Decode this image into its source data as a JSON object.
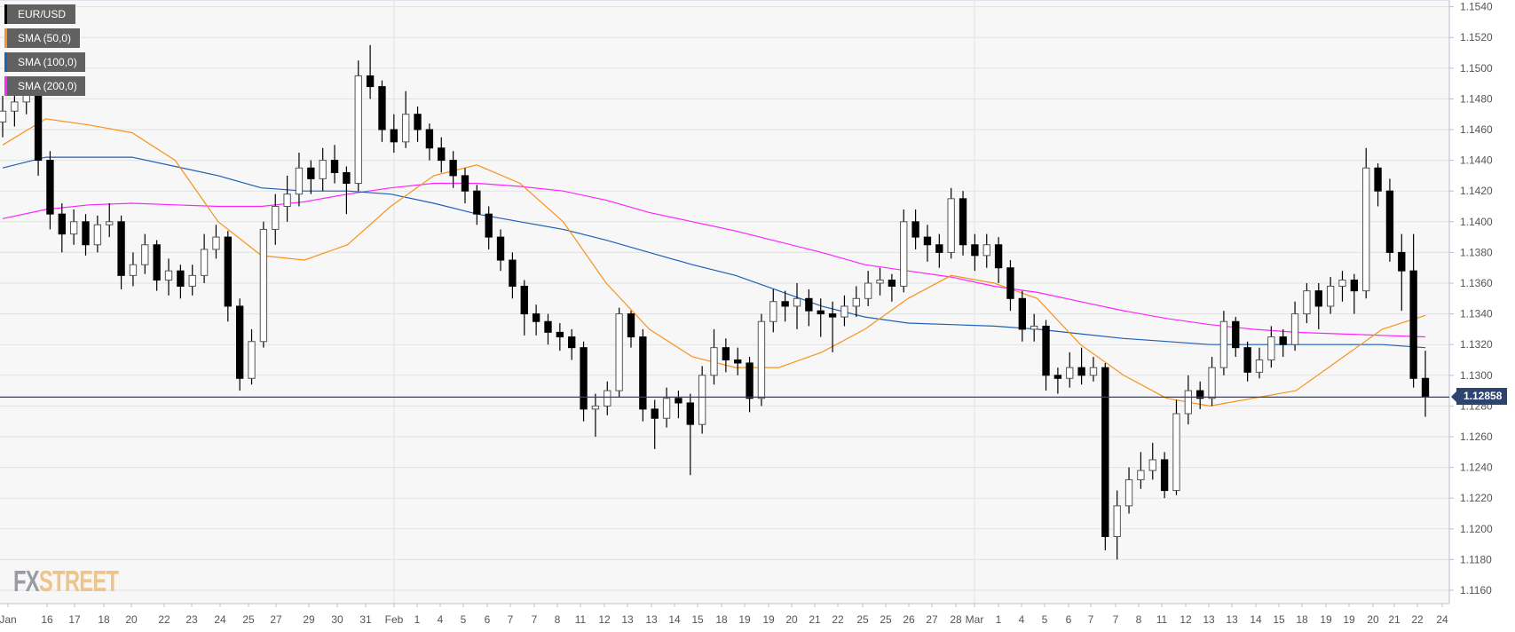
{
  "chart_data": {
    "type": "candlestick",
    "symbol": "EUR/USD",
    "last_price": "1.12858",
    "ylim": [
      1.1151,
      1.1542
    ],
    "y_ticks": [
      "1.1540",
      "1.1520",
      "1.1500",
      "1.1480",
      "1.1460",
      "1.1440",
      "1.1420",
      "1.1400",
      "1.1380",
      "1.1360",
      "1.1340",
      "1.1320",
      "1.1300",
      "1.1280",
      "1.1260",
      "1.1240",
      "1.1220",
      "1.1200",
      "1.1180",
      "1.1160"
    ],
    "x_ticks": [
      "Jan",
      "16",
      "17",
      "18",
      "20",
      "22",
      "23",
      "24",
      "25",
      "27",
      "29",
      "30",
      "31",
      "Feb",
      "1",
      "4",
      "5",
      "6",
      "7",
      "7",
      "8",
      "11",
      "12",
      "13",
      "13",
      "14",
      "15",
      "18",
      "19",
      "19",
      "20",
      "21",
      "22",
      "25",
      "25",
      "26",
      "27",
      "28",
      "Mar",
      "1",
      "4",
      "5",
      "6",
      "7",
      "7",
      "8",
      "11",
      "12",
      "13",
      "13",
      "14",
      "15",
      "18",
      "19",
      "19",
      "20",
      "21",
      "22",
      "24"
    ],
    "grid": true,
    "colors": {
      "up": "#ffffff",
      "down": "#000000",
      "sma50": "#f7931e",
      "sma100": "#1f5fb4",
      "sma200": "#ff22ff",
      "price_line": "#2c4470"
    },
    "legend": [
      {
        "label": "EUR/USD",
        "color": "#000000"
      },
      {
        "label": "SMA (50,0)",
        "color": "#f7931e"
      },
      {
        "label": "SMA (100,0)",
        "color": "#1f5fb4"
      },
      {
        "label": "SMA (200,0)",
        "color": "#ff22ff"
      }
    ],
    "ohlc": [
      [
        1.1465,
        1.1482,
        1.1455,
        1.1472
      ],
      [
        1.1472,
        1.1486,
        1.1462,
        1.1478
      ],
      [
        1.1478,
        1.1494,
        1.147,
        1.1485
      ],
      [
        1.1485,
        1.1488,
        1.143,
        1.144
      ],
      [
        1.144,
        1.1446,
        1.1395,
        1.1405
      ],
      [
        1.1405,
        1.1412,
        1.138,
        1.1392
      ],
      [
        1.1392,
        1.1408,
        1.1385,
        1.14
      ],
      [
        1.14,
        1.1405,
        1.1378,
        1.1385
      ],
      [
        1.1385,
        1.1404,
        1.138,
        1.1398
      ],
      [
        1.1398,
        1.1412,
        1.139,
        1.14
      ],
      [
        1.14,
        1.1404,
        1.1356,
        1.1365
      ],
      [
        1.1365,
        1.138,
        1.1358,
        1.1372
      ],
      [
        1.1372,
        1.1392,
        1.1366,
        1.1385
      ],
      [
        1.1385,
        1.1388,
        1.1355,
        1.1362
      ],
      [
        1.1362,
        1.1376,
        1.1352,
        1.1368
      ],
      [
        1.1368,
        1.1372,
        1.135,
        1.1358
      ],
      [
        1.1358,
        1.1372,
        1.1352,
        1.1365
      ],
      [
        1.1365,
        1.1392,
        1.136,
        1.1382
      ],
      [
        1.1382,
        1.1398,
        1.1376,
        1.139
      ],
      [
        1.139,
        1.1394,
        1.1335,
        1.1345
      ],
      [
        1.1345,
        1.135,
        1.129,
        1.1298
      ],
      [
        1.1298,
        1.133,
        1.1294,
        1.1322
      ],
      [
        1.1322,
        1.14,
        1.1318,
        1.1395
      ],
      [
        1.1395,
        1.1418,
        1.1385,
        1.141
      ],
      [
        1.141,
        1.143,
        1.14,
        1.1418
      ],
      [
        1.1418,
        1.1445,
        1.141,
        1.1435
      ],
      [
        1.1435,
        1.144,
        1.1418,
        1.1428
      ],
      [
        1.1428,
        1.1448,
        1.142,
        1.144
      ],
      [
        1.144,
        1.145,
        1.1425,
        1.1432
      ],
      [
        1.1432,
        1.1436,
        1.1405,
        1.1425
      ],
      [
        1.1425,
        1.1505,
        1.142,
        1.1495
      ],
      [
        1.1495,
        1.1515,
        1.148,
        1.1488
      ],
      [
        1.1488,
        1.1492,
        1.1452,
        1.146
      ],
      [
        1.146,
        1.147,
        1.1445,
        1.1452
      ],
      [
        1.1452,
        1.1485,
        1.1448,
        1.147
      ],
      [
        1.147,
        1.1475,
        1.1452,
        1.146
      ],
      [
        1.146,
        1.1464,
        1.144,
        1.1448
      ],
      [
        1.1448,
        1.1455,
        1.1432,
        1.144
      ],
      [
        1.144,
        1.1446,
        1.1422,
        1.143
      ],
      [
        1.143,
        1.1435,
        1.1412,
        1.142
      ],
      [
        1.142,
        1.1424,
        1.1398,
        1.1405
      ],
      [
        1.1405,
        1.141,
        1.1382,
        1.139
      ],
      [
        1.139,
        1.1395,
        1.1368,
        1.1375
      ],
      [
        1.1375,
        1.138,
        1.135,
        1.1358
      ],
      [
        1.1358,
        1.1362,
        1.1326,
        1.134
      ],
      [
        1.134,
        1.1346,
        1.1326,
        1.1335
      ],
      [
        1.1335,
        1.134,
        1.132,
        1.1328
      ],
      [
        1.1328,
        1.1334,
        1.1316,
        1.1325
      ],
      [
        1.1325,
        1.133,
        1.131,
        1.1318
      ],
      [
        1.1318,
        1.1322,
        1.127,
        1.1278
      ],
      [
        1.1278,
        1.1288,
        1.126,
        1.128
      ],
      [
        1.128,
        1.1296,
        1.1274,
        1.129
      ],
      [
        1.129,
        1.1344,
        1.1286,
        1.134
      ],
      [
        1.134,
        1.1342,
        1.1318,
        1.1325
      ],
      [
        1.1325,
        1.133,
        1.127,
        1.1278
      ],
      [
        1.1278,
        1.1284,
        1.1252,
        1.1272
      ],
      [
        1.1272,
        1.1292,
        1.1266,
        1.1285
      ],
      [
        1.1285,
        1.129,
        1.1272,
        1.1282
      ],
      [
        1.1282,
        1.1288,
        1.1235,
        1.1268
      ],
      [
        1.1268,
        1.1306,
        1.1262,
        1.13
      ],
      [
        1.13,
        1.133,
        1.1294,
        1.1318
      ],
      [
        1.1318,
        1.1324,
        1.1302,
        1.131
      ],
      [
        1.131,
        1.1318,
        1.13,
        1.1308
      ],
      [
        1.1308,
        1.1312,
        1.1276,
        1.1285
      ],
      [
        1.1285,
        1.134,
        1.128,
        1.1335
      ],
      [
        1.1335,
        1.1356,
        1.1328,
        1.1348
      ],
      [
        1.1348,
        1.1355,
        1.1335,
        1.1345
      ],
      [
        1.1345,
        1.136,
        1.133,
        1.135
      ],
      [
        1.135,
        1.1356,
        1.1332,
        1.1342
      ],
      [
        1.1342,
        1.135,
        1.1325,
        1.134
      ],
      [
        1.134,
        1.1348,
        1.1315,
        1.1338
      ],
      [
        1.1338,
        1.1352,
        1.1332,
        1.1345
      ],
      [
        1.1345,
        1.1358,
        1.1338,
        1.135
      ],
      [
        1.135,
        1.1368,
        1.1345,
        1.136
      ],
      [
        1.136,
        1.137,
        1.1352,
        1.1362
      ],
      [
        1.1362,
        1.1366,
        1.1348,
        1.1358
      ],
      [
        1.1358,
        1.1408,
        1.1354,
        1.14
      ],
      [
        1.14,
        1.1408,
        1.1382,
        1.139
      ],
      [
        1.139,
        1.1398,
        1.1374,
        1.1385
      ],
      [
        1.1385,
        1.1392,
        1.137,
        1.138
      ],
      [
        1.138,
        1.1422,
        1.1376,
        1.1415
      ],
      [
        1.1415,
        1.142,
        1.1378,
        1.1385
      ],
      [
        1.1385,
        1.1392,
        1.1368,
        1.1378
      ],
      [
        1.1378,
        1.1392,
        1.137,
        1.1385
      ],
      [
        1.1385,
        1.139,
        1.136,
        1.137
      ],
      [
        1.137,
        1.1375,
        1.1342,
        1.135
      ],
      [
        1.135,
        1.1355,
        1.1322,
        1.133
      ],
      [
        1.133,
        1.134,
        1.1322,
        1.1332
      ],
      [
        1.1332,
        1.1336,
        1.129,
        1.13
      ],
      [
        1.13,
        1.1305,
        1.1288,
        1.1298
      ],
      [
        1.1298,
        1.1315,
        1.1292,
        1.1305
      ],
      [
        1.1305,
        1.1318,
        1.1294,
        1.13
      ],
      [
        1.13,
        1.1312,
        1.1296,
        1.1305
      ],
      [
        1.1305,
        1.1308,
        1.1186,
        1.1195
      ],
      [
        1.1195,
        1.1225,
        1.118,
        1.1215
      ],
      [
        1.1215,
        1.124,
        1.121,
        1.1232
      ],
      [
        1.1232,
        1.125,
        1.1226,
        1.1238
      ],
      [
        1.1238,
        1.1256,
        1.1232,
        1.1245
      ],
      [
        1.1245,
        1.125,
        1.122,
        1.1225
      ],
      [
        1.1225,
        1.1284,
        1.1222,
        1.1275
      ],
      [
        1.1275,
        1.13,
        1.1268,
        1.129
      ],
      [
        1.129,
        1.1296,
        1.1278,
        1.1285
      ],
      [
        1.1285,
        1.1312,
        1.128,
        1.1305
      ],
      [
        1.1305,
        1.1342,
        1.13,
        1.1335
      ],
      [
        1.1335,
        1.1338,
        1.1312,
        1.1318
      ],
      [
        1.1318,
        1.1322,
        1.1296,
        1.1302
      ],
      [
        1.1302,
        1.1318,
        1.1298,
        1.131
      ],
      [
        1.131,
        1.1332,
        1.1305,
        1.1325
      ],
      [
        1.1325,
        1.133,
        1.1312,
        1.132
      ],
      [
        1.132,
        1.1348,
        1.1316,
        1.134
      ],
      [
        1.134,
        1.136,
        1.1334,
        1.1355
      ],
      [
        1.1355,
        1.136,
        1.133,
        1.1345
      ],
      [
        1.1345,
        1.1364,
        1.134,
        1.1358
      ],
      [
        1.1358,
        1.1368,
        1.1348,
        1.1362
      ],
      [
        1.1362,
        1.1366,
        1.134,
        1.1355
      ],
      [
        1.1355,
        1.1448,
        1.135,
        1.1435
      ],
      [
        1.1435,
        1.1438,
        1.141,
        1.142
      ],
      [
        1.142,
        1.1428,
        1.1374,
        1.138
      ],
      [
        1.138,
        1.1392,
        1.1342,
        1.1368
      ],
      [
        1.1368,
        1.1392,
        1.1292,
        1.1298
      ],
      [
        1.1298,
        1.1316,
        1.1273,
        1.12858
      ]
    ],
    "sma50": [
      1.145,
      1.1467,
      1.1463,
      1.1458,
      1.144,
      1.14,
      1.1378,
      1.1375,
      1.1385,
      1.141,
      1.143,
      1.1437,
      1.1425,
      1.14,
      1.136,
      1.133,
      1.1312,
      1.1305,
      1.1305,
      1.1315,
      1.133,
      1.135,
      1.1365,
      1.136,
      1.135,
      1.132,
      1.13,
      1.1285,
      1.128,
      1.1285,
      1.129,
      1.131,
      1.133,
      1.1339
    ],
    "sma100": [
      1.1435,
      1.1442,
      1.1442,
      1.1442,
      1.1436,
      1.143,
      1.1422,
      1.142,
      1.142,
      1.1418,
      1.1412,
      1.1405,
      1.14,
      1.1395,
      1.1388,
      1.138,
      1.1372,
      1.1365,
      1.1355,
      1.1345,
      1.1338,
      1.1334,
      1.1333,
      1.1332,
      1.133,
      1.1327,
      1.1324,
      1.1322,
      1.132,
      1.132,
      1.132,
      1.132,
      1.132,
      1.1318
    ],
    "sma200": [
      1.1402,
      1.1408,
      1.1411,
      1.1412,
      1.1411,
      1.141,
      1.141,
      1.1413,
      1.1418,
      1.1422,
      1.1425,
      1.1425,
      1.1423,
      1.142,
      1.1414,
      1.1406,
      1.14,
      1.1394,
      1.1387,
      1.138,
      1.1372,
      1.1368,
      1.1364,
      1.1358,
      1.1354,
      1.1348,
      1.1342,
      1.1337,
      1.1333,
      1.133,
      1.1328,
      1.1327,
      1.1326,
      1.1325
    ]
  },
  "watermark": "FXSTREET",
  "logo": {
    "part1": "FX",
    "part2": "STREET"
  }
}
